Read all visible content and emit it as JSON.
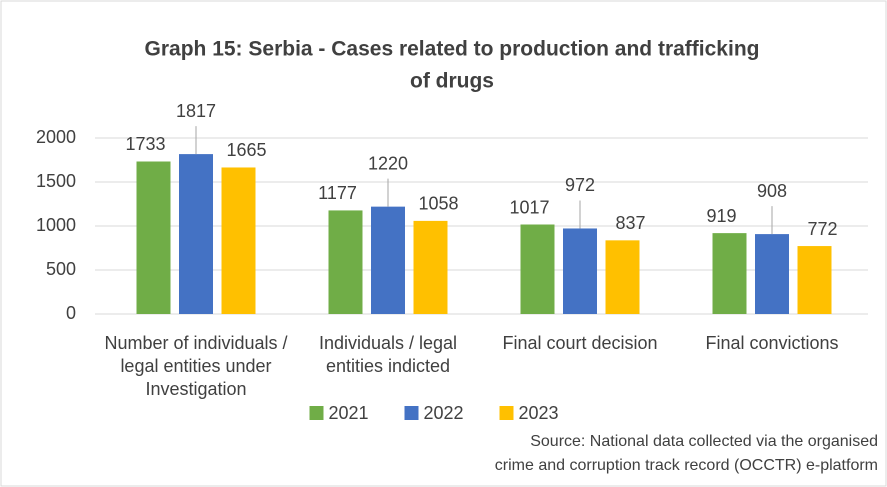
{
  "chart_data": {
    "type": "bar",
    "title": [
      "Graph 15: Serbia - Cases related to production and trafficking",
      "of drugs"
    ],
    "categories": [
      "Number of individuals / legal entities under Investigation",
      "Individuals / legal entities indicted",
      "Final court decision",
      "Final convictions"
    ],
    "series": [
      {
        "name": "2021",
        "color": "#70ad47",
        "values": [
          1733,
          1177,
          1017,
          919
        ]
      },
      {
        "name": "2022",
        "color": "#4472c4",
        "values": [
          1817,
          1220,
          972,
          908
        ]
      },
      {
        "name": "2023",
        "color": "#ffc000",
        "values": [
          1665,
          1058,
          837,
          772
        ]
      }
    ],
    "ylim": [
      0,
      2000
    ],
    "yticks": [
      0,
      500,
      1000,
      1500,
      2000
    ],
    "grid": true,
    "legend": "bottom",
    "source": [
      "Source: National data collected via the organised",
      "crime and corruption track record (OCCTR) e-platform"
    ]
  }
}
